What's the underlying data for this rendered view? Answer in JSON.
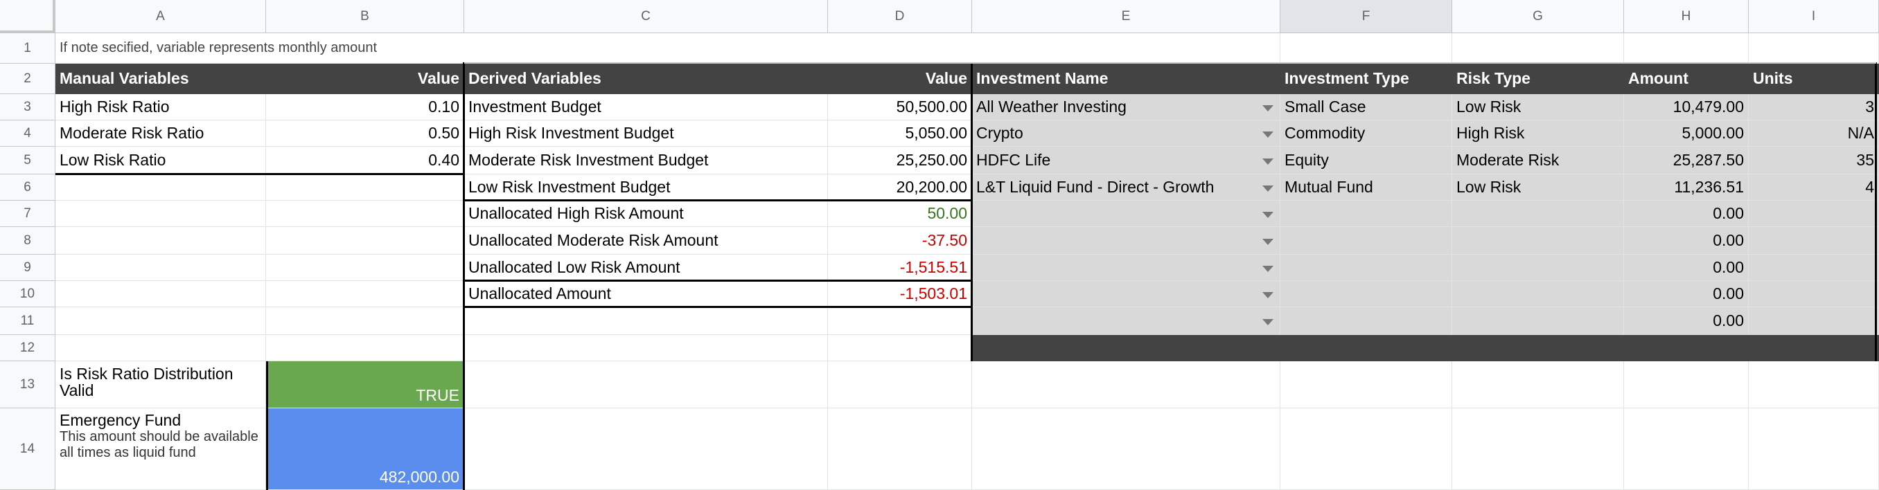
{
  "columns": [
    "A",
    "B",
    "C",
    "D",
    "E",
    "F",
    "G",
    "H",
    "I"
  ],
  "rows": [
    "1",
    "2",
    "3",
    "4",
    "5",
    "6",
    "7",
    "8",
    "9",
    "10",
    "11",
    "12",
    "13",
    "14"
  ],
  "note": "If note secified, variable represents monthly amount",
  "manual": {
    "header": "Manual Variables",
    "value_header": "Value",
    "items": [
      {
        "label": "High Risk Ratio",
        "value": "0.10"
      },
      {
        "label": "Moderate Risk Ratio",
        "value": "0.50"
      },
      {
        "label": "Low Risk Ratio",
        "value": "0.40"
      }
    ]
  },
  "derived": {
    "header": "Derived Variables",
    "value_header": "Value",
    "items": [
      {
        "label": "Investment Budget",
        "value": "50,500.00"
      },
      {
        "label": "High Risk Investment Budget",
        "value": "5,050.00"
      },
      {
        "label": "Moderate Risk Investment Budget",
        "value": "25,250.00"
      },
      {
        "label": "Low Risk Investment Budget",
        "value": "20,200.00"
      },
      {
        "label": "Unallocated High Risk Amount",
        "value": "50.00"
      },
      {
        "label": "Unallocated Moderate Risk Amount",
        "value": "-37.50"
      },
      {
        "label": "Unallocated Low Risk Amount",
        "value": "-1,515.51"
      },
      {
        "label": "Unallocated Amount",
        "value": "-1,503.01"
      }
    ]
  },
  "investments": {
    "headers": [
      "Investment Name",
      "Investment Type",
      "Risk Type",
      "Amount",
      "Units"
    ],
    "rows": [
      [
        "All Weather Investing",
        "Small Case",
        "Low Risk",
        "10,479.00",
        "3"
      ],
      [
        "Crypto",
        "Commodity",
        "High Risk",
        "5,000.00",
        "N/A"
      ],
      [
        "HDFC Life",
        "Equity",
        "Moderate Risk",
        "25,287.50",
        "35"
      ],
      [
        "L&T Liquid Fund - Direct - Growth",
        "Mutual Fund",
        "Low Risk",
        "11,236.51",
        "4"
      ],
      [
        "",
        "",
        "",
        "0.00",
        ""
      ],
      [
        "",
        "",
        "",
        "0.00",
        ""
      ],
      [
        "",
        "",
        "",
        "0.00",
        ""
      ],
      [
        "",
        "",
        "",
        "0.00",
        ""
      ],
      [
        "",
        "",
        "",
        "0.00",
        ""
      ]
    ]
  },
  "risk_valid": {
    "label": "Is Risk Ratio Distribution Valid",
    "value": "TRUE",
    "color": "#6aa84f"
  },
  "emergency": {
    "label": "Emergency Fund",
    "sublabel": "This amount should be available all times as liquid fund",
    "value": "482,000.00",
    "color": "#5b8def"
  },
  "colors": {
    "header_dark": "#434343",
    "table_gray": "#d9d9d9",
    "positive": "#38761d",
    "negative": "#cc0000"
  }
}
